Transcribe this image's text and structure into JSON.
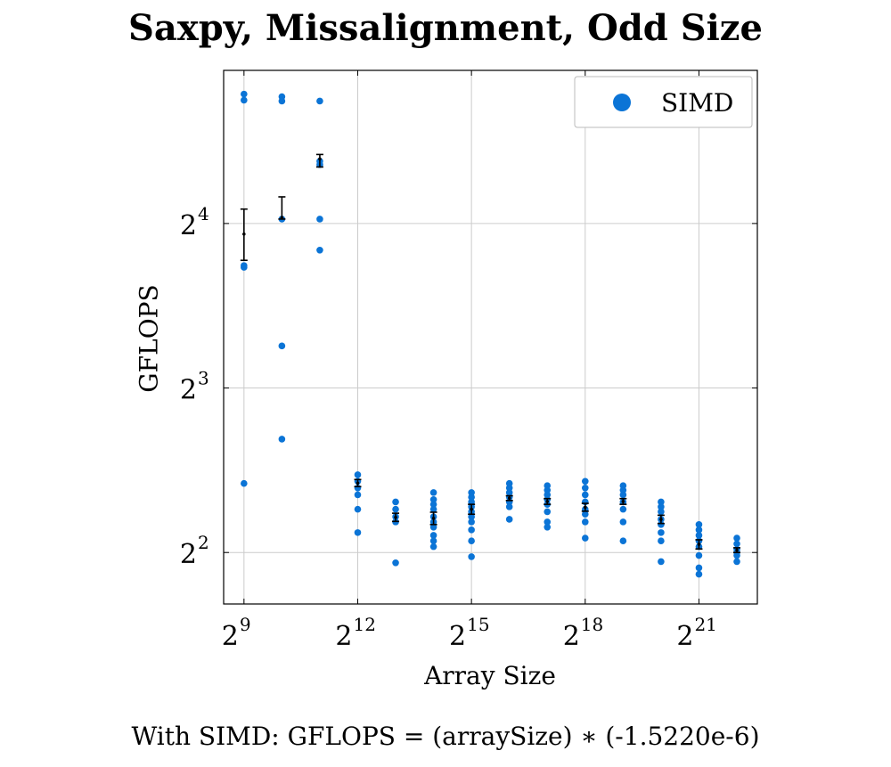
{
  "chart_data": {
    "type": "scatter",
    "title": "Saxpy, Missalignment, Odd Size",
    "xlabel": "Array Size",
    "ylabel": "GFLOPS",
    "x_scale": "log2",
    "y_scale": "log2",
    "xlim": [
      353,
      6100000
    ],
    "ylim": [
      3.22,
      30.5
    ],
    "x_ticks": [
      512,
      4096,
      32768,
      262144,
      2097152
    ],
    "x_tick_exponents": [
      "9",
      "12",
      "15",
      "18",
      "21"
    ],
    "y_ticks": [
      4,
      8,
      16
    ],
    "y_tick_exponents": [
      "2",
      "3",
      "4"
    ],
    "grid": true,
    "legend": {
      "position": "top-right",
      "entries": [
        "SIMD"
      ]
    },
    "colors": {
      "series": "#0b74d6",
      "errorbar": "#000000",
      "grid": "#cccccc"
    },
    "series": [
      {
        "name": "SIMD",
        "points": [
          [
            512,
            27.6
          ],
          [
            512,
            26.9
          ],
          [
            512,
            13.4
          ],
          [
            512,
            13.3
          ],
          [
            512,
            5.35
          ],
          [
            1024,
            27.3
          ],
          [
            1024,
            26.8
          ],
          [
            1024,
            16.3
          ],
          [
            1024,
            9.55
          ],
          [
            1024,
            6.45
          ],
          [
            2048,
            26.8
          ],
          [
            2048,
            20.8
          ],
          [
            2048,
            20.5
          ],
          [
            2048,
            16.3
          ],
          [
            2048,
            14.3
          ],
          [
            4096,
            5.55
          ],
          [
            4096,
            5.4
          ],
          [
            4096,
            5.25
          ],
          [
            4096,
            5.1
          ],
          [
            4096,
            4.8
          ],
          [
            4096,
            4.35
          ],
          [
            8192,
            4.95
          ],
          [
            8192,
            4.8
          ],
          [
            8192,
            4.65
          ],
          [
            8192,
            4.55
          ],
          [
            8192,
            3.83
          ],
          [
            16384,
            5.15
          ],
          [
            16384,
            5.0
          ],
          [
            16384,
            4.9
          ],
          [
            16384,
            4.8
          ],
          [
            16384,
            4.65
          ],
          [
            16384,
            4.55
          ],
          [
            16384,
            4.45
          ],
          [
            16384,
            4.3
          ],
          [
            16384,
            4.2
          ],
          [
            16384,
            4.1
          ],
          [
            32768,
            5.15
          ],
          [
            32768,
            5.05
          ],
          [
            32768,
            4.95
          ],
          [
            32768,
            4.85
          ],
          [
            32768,
            4.75
          ],
          [
            32768,
            4.65
          ],
          [
            32768,
            4.55
          ],
          [
            32768,
            4.4
          ],
          [
            32768,
            4.2
          ],
          [
            32768,
            3.93
          ],
          [
            65536,
            5.35
          ],
          [
            65536,
            5.25
          ],
          [
            65536,
            5.15
          ],
          [
            65536,
            5.05
          ],
          [
            65536,
            4.95
          ],
          [
            65536,
            4.85
          ],
          [
            65536,
            4.6
          ],
          [
            131072,
            5.3
          ],
          [
            131072,
            5.2
          ],
          [
            131072,
            5.1
          ],
          [
            131072,
            5.0
          ],
          [
            131072,
            4.9
          ],
          [
            131072,
            4.75
          ],
          [
            131072,
            4.55
          ],
          [
            131072,
            4.45
          ],
          [
            262144,
            5.4
          ],
          [
            262144,
            5.25
          ],
          [
            262144,
            5.1
          ],
          [
            262144,
            4.95
          ],
          [
            262144,
            4.8
          ],
          [
            262144,
            4.7
          ],
          [
            262144,
            4.55
          ],
          [
            262144,
            4.25
          ],
          [
            524288,
            5.3
          ],
          [
            524288,
            5.2
          ],
          [
            524288,
            5.1
          ],
          [
            524288,
            4.95
          ],
          [
            524288,
            4.8
          ],
          [
            524288,
            4.55
          ],
          [
            524288,
            4.2
          ],
          [
            1048576,
            4.95
          ],
          [
            1048576,
            4.85
          ],
          [
            1048576,
            4.75
          ],
          [
            1048576,
            4.6
          ],
          [
            1048576,
            4.5
          ],
          [
            1048576,
            4.35
          ],
          [
            1048576,
            4.2
          ],
          [
            1048576,
            3.85
          ],
          [
            2097152,
            4.5
          ],
          [
            2097152,
            4.4
          ],
          [
            2097152,
            4.3
          ],
          [
            2097152,
            4.2
          ],
          [
            2097152,
            4.1
          ],
          [
            2097152,
            3.95
          ],
          [
            2097152,
            3.75
          ],
          [
            2097152,
            3.65
          ],
          [
            4194304,
            4.25
          ],
          [
            4194304,
            4.15
          ],
          [
            4194304,
            4.05
          ],
          [
            4194304,
            4.0
          ],
          [
            4194304,
            3.95
          ],
          [
            4194304,
            3.85
          ]
        ]
      }
    ],
    "error_bars": [
      {
        "x": 512,
        "mean": 15.3,
        "low": 13.7,
        "high": 17.0
      },
      {
        "x": 1024,
        "mean": 16.4,
        "low": 16.3,
        "high": 17.9
      },
      {
        "x": 2048,
        "mean": 21.0,
        "low": 20.3,
        "high": 21.4
      },
      {
        "x": 4096,
        "mean": 5.36,
        "low": 5.28,
        "high": 5.44
      },
      {
        "x": 8192,
        "mean": 4.64,
        "low": 4.56,
        "high": 4.72
      },
      {
        "x": 16384,
        "mean": 4.62,
        "low": 4.5,
        "high": 4.74
      },
      {
        "x": 32768,
        "mean": 4.8,
        "low": 4.7,
        "high": 4.9
      },
      {
        "x": 65536,
        "mean": 5.03,
        "low": 4.98,
        "high": 5.08
      },
      {
        "x": 131072,
        "mean": 4.96,
        "low": 4.9,
        "high": 5.02
      },
      {
        "x": 262144,
        "mean": 4.84,
        "low": 4.76,
        "high": 4.92
      },
      {
        "x": 524288,
        "mean": 4.96,
        "low": 4.9,
        "high": 5.02
      },
      {
        "x": 1048576,
        "mean": 4.6,
        "low": 4.52,
        "high": 4.68
      },
      {
        "x": 2097152,
        "mean": 4.14,
        "low": 4.06,
        "high": 4.22
      },
      {
        "x": 4194304,
        "mean": 4.04,
        "low": 4.0,
        "high": 4.08
      }
    ]
  },
  "footnote": "With SIMD:  GFLOPS = (arraySize) ∗ (-1.5220e-6)"
}
